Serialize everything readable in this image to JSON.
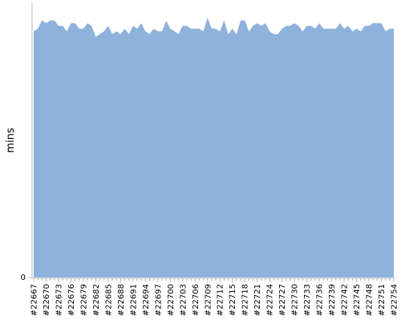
{
  "chart_data": {
    "type": "area",
    "y_label": "mins",
    "color": "#8fb2dc",
    "categories": [
      "#22667",
      null,
      null,
      "#22670",
      null,
      null,
      "#22673",
      null,
      null,
      "#22676",
      null,
      null,
      "#22679",
      null,
      null,
      "#22682",
      null,
      null,
      "#22685",
      null,
      null,
      "#22688",
      null,
      null,
      "#22691",
      null,
      null,
      "#22694",
      null,
      null,
      "#22697",
      null,
      null,
      "#22700",
      null,
      null,
      "#22703",
      null,
      null,
      "#22706",
      null,
      null,
      "#22709",
      null,
      null,
      "#22712",
      null,
      null,
      "#22715",
      null,
      null,
      "#22718",
      null,
      null,
      "#22721",
      null,
      null,
      "#22724",
      null,
      null,
      "#22727",
      null,
      null,
      "#22730",
      null,
      null,
      "#22733",
      null,
      null,
      "#22736",
      null,
      null,
      "#22739",
      null,
      null,
      "#22742",
      null,
      null,
      "#22745",
      null,
      null,
      "#22748",
      null,
      null,
      "#22751",
      null,
      null,
      "#22754"
    ],
    "values": [
      90,
      91,
      94,
      93,
      94,
      94,
      92,
      92,
      90,
      93,
      93,
      91,
      91,
      93,
      92,
      88,
      89,
      90,
      92,
      89,
      90,
      89,
      91,
      89,
      92,
      91,
      93,
      90,
      89,
      91,
      90,
      90,
      94,
      91,
      90,
      89,
      92,
      92,
      91,
      91,
      91,
      90,
      95,
      91,
      91,
      90,
      94,
      89,
      91,
      89,
      94,
      94,
      90,
      92,
      93,
      92,
      93,
      90,
      89,
      89,
      91,
      92,
      92,
      93,
      92,
      90,
      92,
      92,
      91,
      93,
      91,
      91,
      91,
      91,
      93,
      91,
      92,
      90,
      91,
      90,
      92,
      92,
      93,
      93,
      93,
      90,
      91,
      91
    ],
    "ylim": [
      0,
      100
    ],
    "yticks": [
      0
    ]
  }
}
